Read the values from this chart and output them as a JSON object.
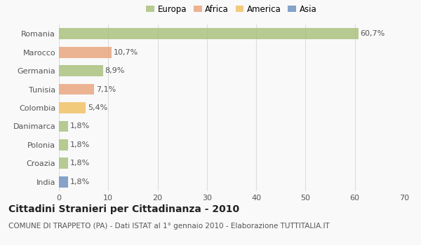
{
  "categories": [
    "Romania",
    "Marocco",
    "Germania",
    "Tunisia",
    "Colombia",
    "Danimarca",
    "Polonia",
    "Croazia",
    "India"
  ],
  "values": [
    60.7,
    10.7,
    8.9,
    7.1,
    5.4,
    1.8,
    1.8,
    1.8,
    1.8
  ],
  "labels": [
    "60,7%",
    "10,7%",
    "8,9%",
    "7,1%",
    "5,4%",
    "1,8%",
    "1,8%",
    "1,8%",
    "1,8%"
  ],
  "colors": [
    "#a8c07a",
    "#e8a47c",
    "#a8c07a",
    "#e8a47c",
    "#f0c060",
    "#a8c07a",
    "#a8c07a",
    "#a8c07a",
    "#6b8fc0"
  ],
  "legend_labels": [
    "Europa",
    "Africa",
    "America",
    "Asia"
  ],
  "legend_colors": [
    "#a8c07a",
    "#e8a47c",
    "#f0c060",
    "#6b8fc0"
  ],
  "xlim": [
    0,
    70
  ],
  "xticks": [
    0,
    10,
    20,
    30,
    40,
    50,
    60,
    70
  ],
  "title": "Cittadini Stranieri per Cittadinanza - 2010",
  "subtitle": "COMUNE DI TRAPPETO (PA) - Dati ISTAT al 1° gennaio 2010 - Elaborazione TUTTITALIA.IT",
  "background_color": "#f9f9f9",
  "grid_color": "#dddddd",
  "bar_height": 0.6,
  "title_fontsize": 10,
  "subtitle_fontsize": 7.5,
  "tick_fontsize": 8,
  "label_fontsize": 8,
  "legend_fontsize": 8.5
}
